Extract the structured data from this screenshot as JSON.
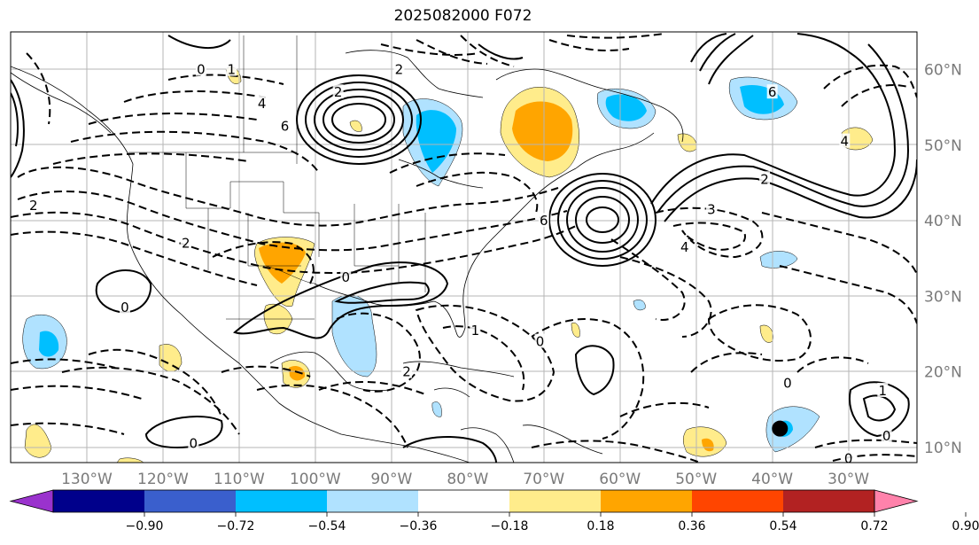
{
  "title": "2025082000 F072",
  "map": {
    "projection": "cylindrical",
    "lon_range": [
      -140,
      -21
    ],
    "lat_range": [
      8,
      65
    ],
    "lat_ticks": [
      "60°N",
      "50°N",
      "40°N",
      "30°N",
      "20°N",
      "10°N"
    ],
    "lat_tick_values": [
      60,
      50,
      40,
      30,
      20,
      10
    ],
    "lon_ticks": [
      "130°W",
      "120°W",
      "110°W",
      "100°W",
      "90°W",
      "80°W",
      "70°W",
      "60°W",
      "50°W",
      "40°W",
      "30°W"
    ],
    "lon_tick_values": [
      -130,
      -120,
      -110,
      -100,
      -90,
      -80,
      -70,
      -60,
      -50,
      -40,
      -30
    ],
    "grid": true,
    "contour_labels": [
      {
        "text": "6",
        "lon": -104,
        "lat": 52.5
      },
      {
        "text": "4",
        "lon": -107,
        "lat": 55.5
      },
      {
        "text": "2",
        "lon": -97,
        "lat": 57
      },
      {
        "text": "6",
        "lon": -70,
        "lat": 40
      },
      {
        "text": "3",
        "lon": -48,
        "lat": 41.5
      },
      {
        "text": "4",
        "lon": -51.5,
        "lat": 36.5
      },
      {
        "text": "6",
        "lon": -40,
        "lat": 57
      },
      {
        "text": "2",
        "lon": -41,
        "lat": 45.5
      },
      {
        "text": "4",
        "lon": -30.5,
        "lat": 50.5
      },
      {
        "text": "0",
        "lon": -125,
        "lat": 28.5
      },
      {
        "text": "0",
        "lon": -96,
        "lat": 32.5
      },
      {
        "text": "1",
        "lon": -79,
        "lat": 25.5
      },
      {
        "text": "0",
        "lon": -70.5,
        "lat": 24
      },
      {
        "text": "0",
        "lon": -116,
        "lat": 10.5
      },
      {
        "text": "0",
        "lon": -38,
        "lat": 18.5
      },
      {
        "text": "1",
        "lon": -25.5,
        "lat": 17.5
      },
      {
        "text": "0",
        "lon": -25,
        "lat": 11.5
      },
      {
        "text": "0",
        "lon": -30,
        "lat": 8.5
      },
      {
        "text": "2",
        "lon": -137,
        "lat": 42
      },
      {
        "text": "2",
        "lon": -117,
        "lat": 37
      },
      {
        "text": "2",
        "lon": -88,
        "lat": 20
      },
      {
        "text": "0",
        "lon": -115,
        "lat": 60
      },
      {
        "text": "1",
        "lon": -111,
        "lat": 60
      },
      {
        "text": "2",
        "lon": -89,
        "lat": 60
      }
    ],
    "highs_lows": [
      {
        "label": "●",
        "lon": -39,
        "lat": 12.5
      }
    ]
  },
  "colorbar": {
    "labels": [
      "−0.90",
      "−0.72",
      "−0.54",
      "−0.36",
      "−0.18",
      "0.18",
      "0.36",
      "0.54",
      "0.72",
      "0.90"
    ],
    "colors": [
      "#9a32cd",
      "#00008b",
      "#3a5fcd",
      "#00bfff",
      "#b0e2ff",
      "#ffffff",
      "#ffec8b",
      "#ffa500",
      "#ff4500",
      "#b22222",
      "#ff82ab"
    ]
  }
}
